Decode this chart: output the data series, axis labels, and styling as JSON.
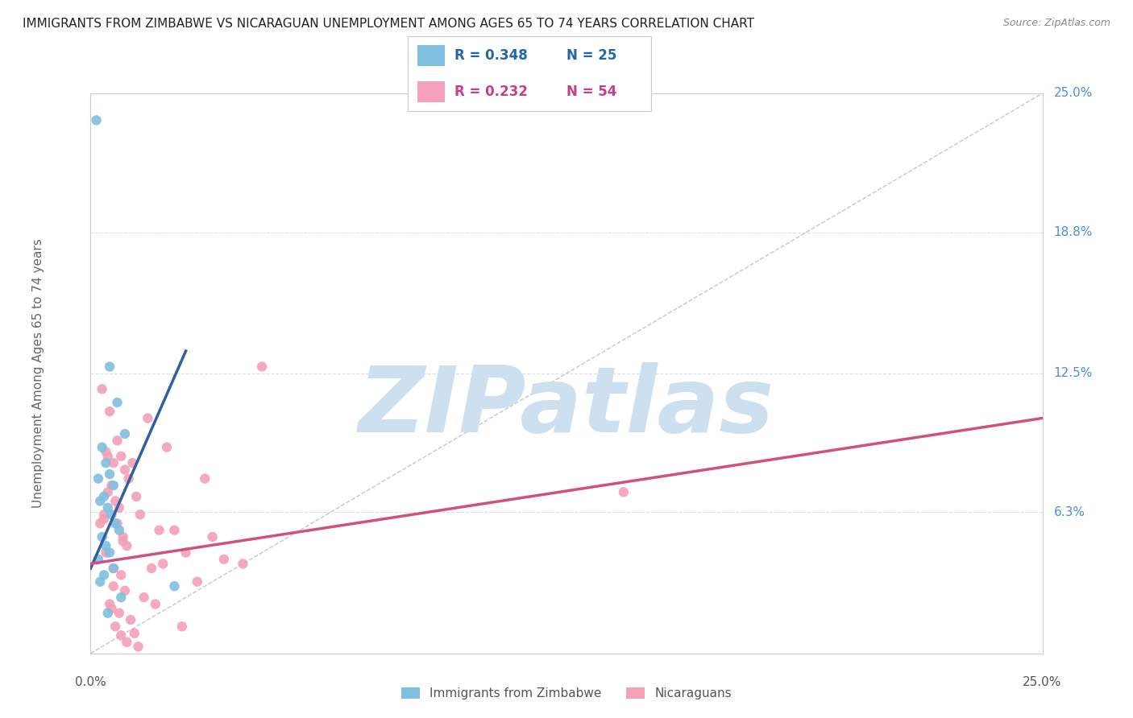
{
  "title": "IMMIGRANTS FROM ZIMBABWE VS NICARAGUAN UNEMPLOYMENT AMONG AGES 65 TO 74 YEARS CORRELATION CHART",
  "source": "Source: ZipAtlas.com",
  "ylabel_axis": "Unemployment Among Ages 65 to 74 years",
  "legend_blue_label": "Immigrants from Zimbabwe",
  "legend_pink_label": "Nicaraguans",
  "legend_blue_r": "R = 0.348",
  "legend_blue_n": "N = 25",
  "legend_pink_r": "R = 0.232",
  "legend_pink_n": "N = 54",
  "xlim": [
    0.0,
    25.0
  ],
  "ylim": [
    0.0,
    25.0
  ],
  "ytick_vals": [
    6.3,
    12.5,
    18.8,
    25.0
  ],
  "ytick_labels": [
    "6.3%",
    "12.5%",
    "18.8%",
    "25.0%"
  ],
  "xtick_labels": [
    "0.0%",
    "25.0%"
  ],
  "blue_scatter_color": "#7fbfdf",
  "pink_scatter_color": "#f4a0b8",
  "blue_line_color": "#3060a0",
  "pink_line_color": "#d05080",
  "diag_color": "#bbbbcc",
  "watermark_color": "#cde0f0",
  "grid_color": "#ddddee",
  "background_color": "#ffffff",
  "blue_scatter_x": [
    0.15,
    0.5,
    0.7,
    0.9,
    0.3,
    0.4,
    0.5,
    0.2,
    0.6,
    0.35,
    0.25,
    0.45,
    0.55,
    0.65,
    0.75,
    0.3,
    0.4,
    0.5,
    0.2,
    0.6,
    0.35,
    0.25,
    2.2,
    0.8,
    0.45
  ],
  "blue_scatter_y": [
    23.8,
    12.8,
    11.2,
    9.8,
    9.2,
    8.5,
    8.0,
    7.8,
    7.5,
    7.0,
    6.8,
    6.5,
    6.2,
    5.8,
    5.5,
    5.2,
    4.8,
    4.5,
    4.2,
    3.8,
    3.5,
    3.2,
    3.0,
    2.5,
    1.8
  ],
  "pink_scatter_x": [
    0.3,
    0.5,
    0.7,
    0.4,
    0.8,
    0.6,
    0.9,
    1.0,
    0.55,
    0.45,
    1.2,
    1.5,
    0.65,
    0.75,
    0.35,
    0.25,
    1.8,
    2.0,
    0.85,
    0.95,
    1.1,
    2.5,
    3.0,
    3.5,
    4.0,
    1.3,
    1.6,
    0.7,
    0.8,
    2.2,
    2.8,
    3.2,
    0.6,
    0.9,
    1.4,
    1.7,
    0.55,
    0.75,
    1.05,
    0.45,
    0.35,
    0.65,
    1.15,
    0.85,
    0.95,
    1.25,
    4.5,
    0.4,
    0.6,
    0.5,
    14.0,
    2.4,
    1.9,
    0.8
  ],
  "pink_scatter_y": [
    11.8,
    10.8,
    9.5,
    9.0,
    8.8,
    8.5,
    8.2,
    7.8,
    7.5,
    7.2,
    7.0,
    10.5,
    6.8,
    6.5,
    6.2,
    5.8,
    5.5,
    9.2,
    5.2,
    4.8,
    8.5,
    4.5,
    7.8,
    4.2,
    4.0,
    6.2,
    3.8,
    5.8,
    3.5,
    5.5,
    3.2,
    5.2,
    3.0,
    2.8,
    2.5,
    2.2,
    2.0,
    1.8,
    1.5,
    8.8,
    6.0,
    1.2,
    0.9,
    5.0,
    0.5,
    0.3,
    12.8,
    4.5,
    3.8,
    2.2,
    7.2,
    1.2,
    4.0,
    0.8
  ],
  "blue_trend_x": [
    0.0,
    2.5
  ],
  "blue_trend_y": [
    3.8,
    13.5
  ],
  "pink_trend_x": [
    0.0,
    25.0
  ],
  "pink_trend_y": [
    4.0,
    10.5
  ]
}
